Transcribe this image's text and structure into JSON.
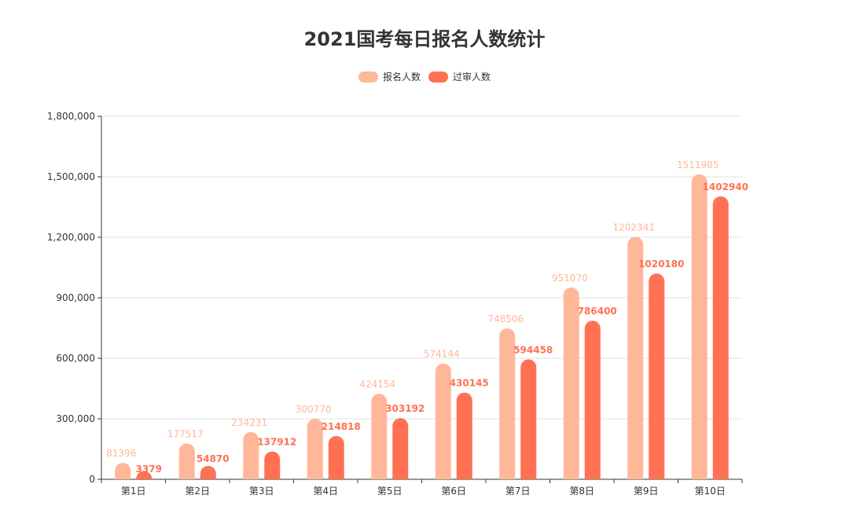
{
  "chart_data": {
    "type": "bar",
    "title": "2021国考每日报名人数统计",
    "categories": [
      "第1日",
      "第2日",
      "第3日",
      "第4日",
      "第5日",
      "第6日",
      "第7日",
      "第8日",
      "第9日",
      "第10日"
    ],
    "series": [
      {
        "name": "报名人数",
        "color": "#FFB799",
        "values": [
          81396,
          177517,
          234231,
          300770,
          424154,
          574144,
          748506,
          951070,
          1202341,
          1511985
        ]
      },
      {
        "name": "过审人数",
        "color": "#FF7152",
        "values": [
          3379,
          54870,
          137912,
          214818,
          303192,
          430145,
          594458,
          786400,
          1020180,
          1402940
        ]
      }
    ],
    "y_ticks": [
      "0",
      "300,000",
      "600,000",
      "900,000",
      "1,200,000",
      "1,500,000",
      "1,800,000"
    ],
    "ylim": [
      0,
      1800000
    ],
    "grid": true,
    "legend_position": "top-center"
  }
}
